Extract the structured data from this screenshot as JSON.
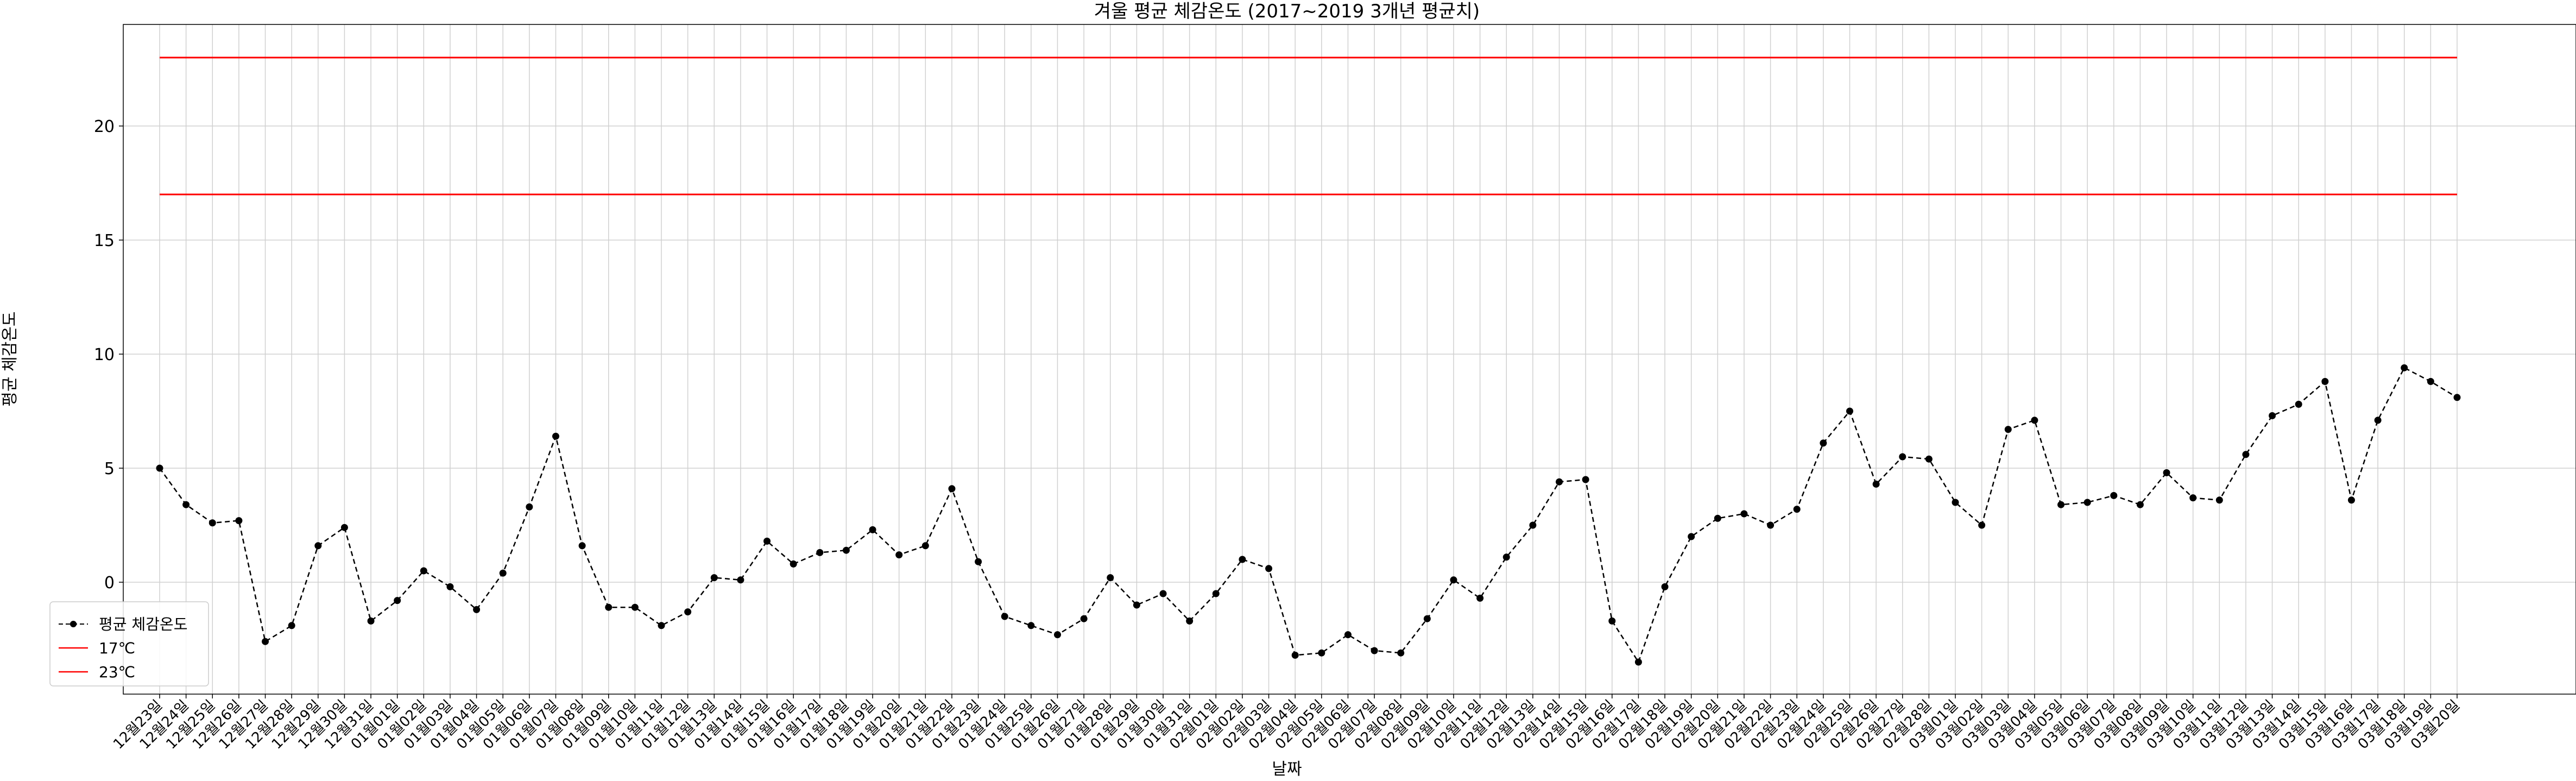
{
  "chart_data": {
    "type": "line",
    "title": "겨울 평균 체감온도 (2017~2019 3개년 평균치)",
    "xlabel": "날짜",
    "ylabel": "평균 체감온도",
    "ylim": [
      -5,
      24
    ],
    "yticks": [
      0,
      5,
      10,
      15,
      20
    ],
    "grid": true,
    "legend_position": "lower-left",
    "categories": [
      "12월23일",
      "12월24일",
      "12월25일",
      "12월26일",
      "12월27일",
      "12월28일",
      "12월29일",
      "12월30일",
      "12월31일",
      "01월01일",
      "01월02일",
      "01월03일",
      "01월04일",
      "01월05일",
      "01월06일",
      "01월07일",
      "01월08일",
      "01월09일",
      "01월10일",
      "01월11일",
      "01월12일",
      "01월13일",
      "01월14일",
      "01월15일",
      "01월16일",
      "01월17일",
      "01월18일",
      "01월19일",
      "01월20일",
      "01월21일",
      "01월22일",
      "01월23일",
      "01월24일",
      "01월25일",
      "01월26일",
      "01월27일",
      "01월28일",
      "01월29일",
      "01월30일",
      "01월31일",
      "02월01일",
      "02월02일",
      "02월03일",
      "02월04일",
      "02월05일",
      "02월06일",
      "02월07일",
      "02월08일",
      "02월09일",
      "02월10일",
      "02월11일",
      "02월12일",
      "02월13일",
      "02월14일",
      "02월15일",
      "02월16일",
      "02월17일",
      "02월18일",
      "02월19일",
      "02월20일",
      "02월21일",
      "02월22일",
      "02월23일",
      "02월24일",
      "02월25일",
      "02월26일",
      "02월27일",
      "02월28일",
      "03월01일",
      "03월02일",
      "03월03일",
      "03월04일",
      "03월05일",
      "03월06일",
      "03월07일",
      "03월08일",
      "03월09일",
      "03월10일",
      "03월11일",
      "03월12일",
      "03월13일",
      "03월14일",
      "03월15일",
      "03월16일",
      "03월17일",
      "03월18일",
      "03월19일",
      "03월20일"
    ],
    "series": [
      {
        "name": "평균 체감온도",
        "color": "#000000",
        "style": "dashed-with-markers",
        "values": [
          5.0,
          3.4,
          2.6,
          2.7,
          -2.6,
          -1.9,
          1.6,
          2.4,
          -1.7,
          -0.8,
          0.5,
          -0.2,
          -1.2,
          0.4,
          3.3,
          6.4,
          1.6,
          -1.1,
          -1.1,
          -1.9,
          -1.3,
          0.2,
          0.1,
          1.8,
          0.8,
          1.3,
          1.4,
          2.3,
          1.2,
          1.6,
          4.1,
          0.9,
          -1.5,
          -1.9,
          -2.3,
          -1.6,
          0.2,
          -1.0,
          -0.5,
          -1.7,
          -0.5,
          1.0,
          0.6,
          -3.2,
          -3.1,
          -2.3,
          -3.0,
          -3.1,
          -1.6,
          0.1,
          -0.7,
          1.1,
          2.5,
          4.4,
          4.5,
          -1.7,
          -3.5,
          -0.2,
          2.0,
          2.8,
          3.0,
          2.5,
          3.2,
          6.1,
          7.5,
          4.3,
          5.5,
          5.4,
          3.5,
          2.5,
          6.7,
          7.1,
          3.4,
          3.5,
          3.8,
          3.4,
          4.8,
          3.7,
          3.6,
          5.6,
          7.3,
          7.8,
          8.8,
          3.6,
          7.1,
          9.4,
          8.8,
          8.1
        ]
      },
      {
        "name": "17℃",
        "color": "#ff0000",
        "style": "solid",
        "value": 17
      },
      {
        "name": "23℃",
        "color": "#ff0000",
        "style": "solid",
        "value": 23
      }
    ]
  }
}
